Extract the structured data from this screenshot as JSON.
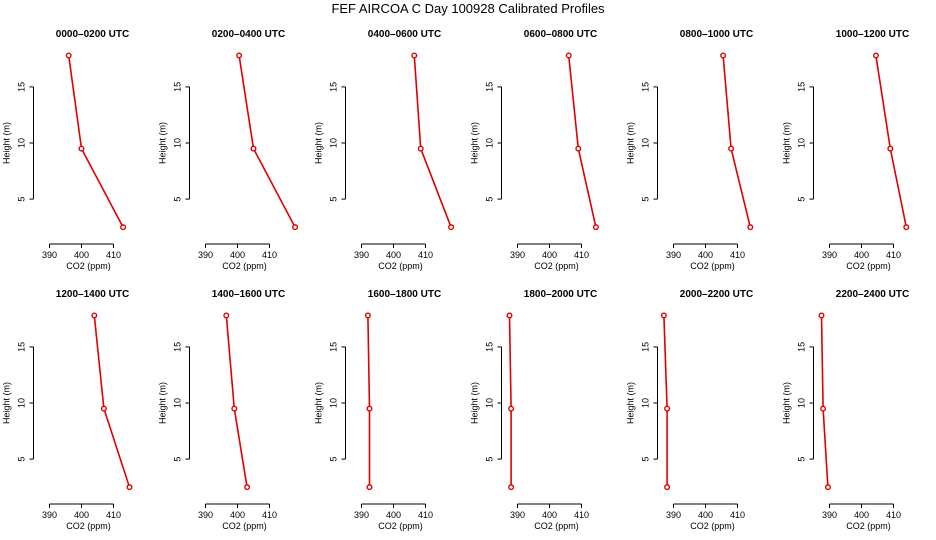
{
  "figure": {
    "title": "FEF AIRCOA C  Day 100928  Calibrated Profiles"
  },
  "colors": {
    "line": "#e00000",
    "axis": "#000000",
    "background": "#ffffff"
  },
  "chart_data": [
    {
      "type": "line",
      "title": "0000–0200 UTC",
      "xlabel": "CO2 (ppm)",
      "ylabel": "Height (m)",
      "xlim": [
        385,
        420
      ],
      "ylim": [
        1,
        19
      ],
      "xticks": [
        390,
        400,
        410
      ],
      "yticks": [
        5,
        10,
        15
      ],
      "series": [
        {
          "name": "profile",
          "points": [
            [
              413,
              2.5
            ],
            [
              400,
              9.5
            ],
            [
              396,
              17.8
            ]
          ]
        }
      ]
    },
    {
      "type": "line",
      "title": "0200–0400 UTC",
      "xlabel": "CO2 (ppm)",
      "ylabel": "Height (m)",
      "xlim": [
        385,
        420
      ],
      "ylim": [
        1,
        19
      ],
      "xticks": [
        390,
        400,
        410
      ],
      "yticks": [
        5,
        10,
        15
      ],
      "series": [
        {
          "name": "profile",
          "points": [
            [
              418,
              2.5
            ],
            [
              405,
              9.5
            ],
            [
              400.5,
              17.8
            ]
          ]
        }
      ]
    },
    {
      "type": "line",
      "title": "0400–0600 UTC",
      "xlabel": "CO2 (ppm)",
      "ylabel": "Height (m)",
      "xlim": [
        385,
        420
      ],
      "ylim": [
        1,
        19
      ],
      "xticks": [
        390,
        400,
        410
      ],
      "yticks": [
        5,
        10,
        15
      ],
      "series": [
        {
          "name": "profile",
          "points": [
            [
              418,
              2.5
            ],
            [
              408.5,
              9.5
            ],
            [
              406.5,
              17.8
            ]
          ]
        }
      ]
    },
    {
      "type": "line",
      "title": "0600–0800 UTC",
      "xlabel": "CO2 (ppm)",
      "ylabel": "Height (m)",
      "xlim": [
        385,
        420
      ],
      "ylim": [
        1,
        19
      ],
      "xticks": [
        390,
        400,
        410
      ],
      "yticks": [
        5,
        10,
        15
      ],
      "series": [
        {
          "name": "profile",
          "points": [
            [
              414.5,
              2.5
            ],
            [
              409,
              9.5
            ],
            [
              406,
              17.8
            ]
          ]
        }
      ]
    },
    {
      "type": "line",
      "title": "0800–1000 UTC",
      "xlabel": "CO2 (ppm)",
      "ylabel": "Height (m)",
      "xlim": [
        385,
        420
      ],
      "ylim": [
        1,
        19
      ],
      "xticks": [
        390,
        400,
        410
      ],
      "yticks": [
        5,
        10,
        15
      ],
      "series": [
        {
          "name": "profile",
          "points": [
            [
              414,
              2.5
            ],
            [
              408,
              9.5
            ],
            [
              405.5,
              17.8
            ]
          ]
        }
      ]
    },
    {
      "type": "line",
      "title": "1000–1200 UTC",
      "xlabel": "CO2 (ppm)",
      "ylabel": "Height (m)",
      "xlim": [
        385,
        420
      ],
      "ylim": [
        1,
        19
      ],
      "xticks": [
        390,
        400,
        410
      ],
      "yticks": [
        5,
        10,
        15
      ],
      "series": [
        {
          "name": "profile",
          "points": [
            [
              414,
              2.5
            ],
            [
              409,
              9.5
            ],
            [
              404.5,
              17.8
            ]
          ]
        }
      ]
    },
    {
      "type": "line",
      "title": "1200–1400 UTC",
      "xlabel": "CO2 (ppm)",
      "ylabel": "Height (m)",
      "xlim": [
        385,
        420
      ],
      "ylim": [
        1,
        19
      ],
      "xticks": [
        390,
        400,
        410
      ],
      "yticks": [
        5,
        10,
        15
      ],
      "series": [
        {
          "name": "profile",
          "points": [
            [
              415,
              2.5
            ],
            [
              407,
              9.5
            ],
            [
              404,
              17.8
            ]
          ]
        }
      ]
    },
    {
      "type": "line",
      "title": "1400–1600 UTC",
      "xlabel": "CO2 (ppm)",
      "ylabel": "Height (m)",
      "xlim": [
        385,
        420
      ],
      "ylim": [
        1,
        19
      ],
      "xticks": [
        390,
        400,
        410
      ],
      "yticks": [
        5,
        10,
        15
      ],
      "series": [
        {
          "name": "profile",
          "points": [
            [
              403,
              2.5
            ],
            [
              399,
              9.5
            ],
            [
              396.5,
              17.8
            ]
          ]
        }
      ]
    },
    {
      "type": "line",
      "title": "1600–1800 UTC",
      "xlabel": "CO2 (ppm)",
      "ylabel": "Height (m)",
      "xlim": [
        385,
        420
      ],
      "ylim": [
        1,
        19
      ],
      "xticks": [
        390,
        400,
        410
      ],
      "yticks": [
        5,
        10,
        15
      ],
      "series": [
        {
          "name": "profile",
          "points": [
            [
              392.5,
              2.5
            ],
            [
              392.5,
              9.5
            ],
            [
              392,
              17.8
            ]
          ]
        }
      ]
    },
    {
      "type": "line",
      "title": "1800–2000 UTC",
      "xlabel": "CO2 (ppm)",
      "ylabel": "Height (m)",
      "xlim": [
        385,
        420
      ],
      "ylim": [
        1,
        19
      ],
      "xticks": [
        390,
        400,
        410
      ],
      "yticks": [
        5,
        10,
        15
      ],
      "series": [
        {
          "name": "profile",
          "points": [
            [
              388,
              2.5
            ],
            [
              388,
              9.5
            ],
            [
              387.5,
              17.8
            ]
          ]
        }
      ]
    },
    {
      "type": "line",
      "title": "2000–2200 UTC",
      "xlabel": "CO2 (ppm)",
      "ylabel": "Height (m)",
      "xlim": [
        385,
        420
      ],
      "ylim": [
        1,
        19
      ],
      "xticks": [
        390,
        400,
        410
      ],
      "yticks": [
        5,
        10,
        15
      ],
      "series": [
        {
          "name": "profile",
          "points": [
            [
              388,
              2.5
            ],
            [
              388,
              9.5
            ],
            [
              387,
              17.8
            ]
          ]
        }
      ]
    },
    {
      "type": "line",
      "title": "2200–2400 UTC",
      "xlabel": "CO2 (ppm)",
      "ylabel": "Height (m)",
      "xlim": [
        385,
        420
      ],
      "ylim": [
        1,
        19
      ],
      "xticks": [
        390,
        400,
        410
      ],
      "yticks": [
        5,
        10,
        15
      ],
      "series": [
        {
          "name": "profile",
          "points": [
            [
              389.5,
              2.5
            ],
            [
              388,
              9.5
            ],
            [
              387.5,
              17.8
            ]
          ]
        }
      ]
    }
  ]
}
